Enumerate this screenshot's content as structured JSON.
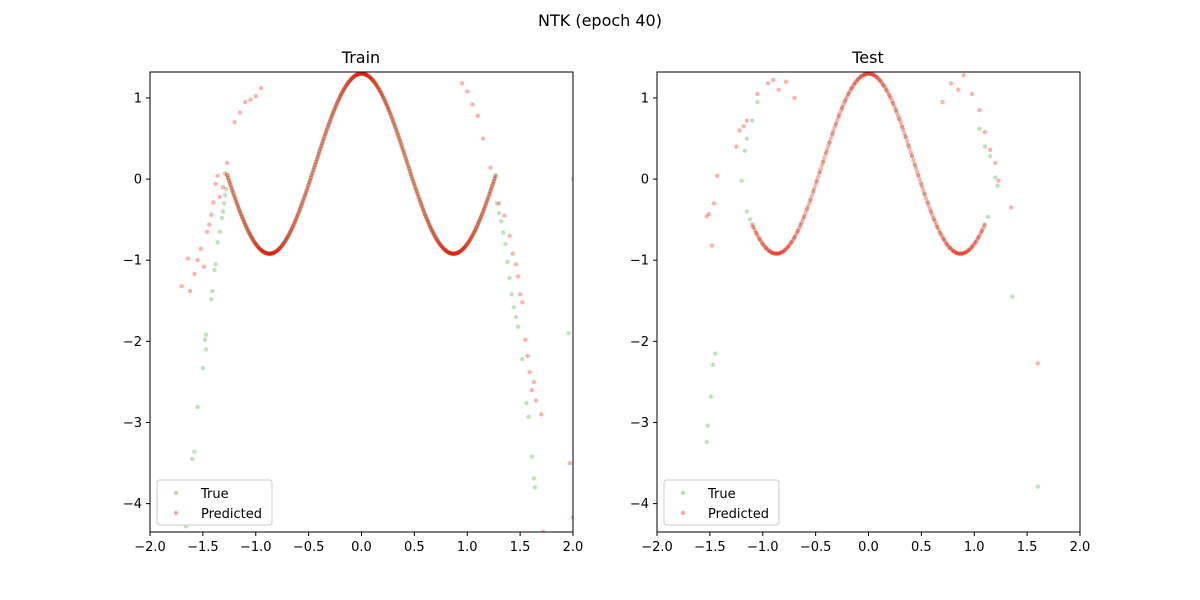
{
  "figure": {
    "suptitle": "NTK (epoch 40)"
  },
  "colors": {
    "true": "#2ca02c",
    "predicted": "#ff0000",
    "axes": "#000000"
  },
  "chart_data": [
    {
      "type": "scatter",
      "title": "Train",
      "xlabel": "",
      "ylabel": "",
      "xlim": [
        -2.0,
        2.0
      ],
      "ylim": [
        -4.35,
        1.32
      ],
      "xticks": [
        -2.0,
        -1.5,
        -1.0,
        -0.5,
        0.0,
        0.5,
        1.0,
        1.5,
        2.0
      ],
      "xtick_labels": [
        "−2.0",
        "−1.5",
        "−1.0",
        "−0.5",
        "0.0",
        "0.5",
        "1.0",
        "1.5",
        "2.0"
      ],
      "yticks": [
        -4,
        -3,
        -2,
        -1,
        0,
        1
      ],
      "ytick_labels": [
        "−4",
        "−3",
        "−2",
        "−1",
        "0",
        "1"
      ],
      "legend": {
        "placement": "lower-left",
        "entries": [
          "True",
          "Predicted"
        ]
      },
      "grid": false,
      "series": [
        {
          "name": "True",
          "color": "#2ca02c",
          "dense_curve": {
            "x_range": [
              -1.27,
              1.27
            ],
            "step": 0.01
          },
          "points": [
            [
              -1.66,
              -4.28
            ],
            [
              -1.6,
              -3.45
            ],
            [
              -1.58,
              -3.36
            ],
            [
              -1.55,
              -2.81
            ],
            [
              -1.5,
              -2.33
            ],
            [
              -1.48,
              -1.98
            ],
            [
              -1.47,
              -1.92
            ],
            [
              -1.47,
              -2.1
            ],
            [
              -1.42,
              -1.48
            ],
            [
              -1.41,
              -1.38
            ],
            [
              -1.39,
              -1.12
            ],
            [
              -1.38,
              -1.05
            ],
            [
              -1.36,
              -0.78
            ],
            [
              -1.34,
              -0.65
            ],
            [
              -1.32,
              -0.48
            ],
            [
              -1.31,
              -0.4
            ],
            [
              -1.3,
              -0.3
            ],
            [
              -1.29,
              -0.2
            ],
            [
              -1.28,
              -0.12
            ],
            [
              1.28,
              -0.3
            ],
            [
              1.3,
              -0.42
            ],
            [
              1.32,
              -0.52
            ],
            [
              1.34,
              -0.66
            ],
            [
              1.36,
              -0.8
            ],
            [
              1.38,
              -1.02
            ],
            [
              1.4,
              -1.22
            ],
            [
              1.42,
              -1.42
            ],
            [
              1.44,
              -1.58
            ],
            [
              1.46,
              -1.7
            ],
            [
              1.48,
              -1.82
            ],
            [
              1.52,
              -2.22
            ],
            [
              1.56,
              -2.76
            ],
            [
              1.58,
              -2.93
            ],
            [
              1.61,
              -3.42
            ],
            [
              1.63,
              -3.69
            ],
            [
              1.64,
              -3.8
            ],
            [
              1.96,
              -1.9
            ],
            [
              2.0,
              0.0
            ]
          ]
        },
        {
          "name": "Predicted",
          "color": "#ff0000",
          "dense_curve": {
            "x_range": [
              -1.27,
              1.27
            ],
            "step": 0.008
          },
          "points": [
            [
              -1.7,
              -1.32
            ],
            [
              -1.64,
              -0.98
            ],
            [
              -1.62,
              -1.38
            ],
            [
              -1.58,
              -1.17
            ],
            [
              -1.55,
              -1.0
            ],
            [
              -1.52,
              -0.86
            ],
            [
              -1.49,
              -1.08
            ],
            [
              -1.46,
              -0.65
            ],
            [
              -1.44,
              -0.56
            ],
            [
              -1.42,
              -0.44
            ],
            [
              -1.4,
              -0.29
            ],
            [
              -1.38,
              -0.06
            ],
            [
              -1.36,
              0.04
            ],
            [
              -1.34,
              -0.22
            ],
            [
              -1.31,
              -0.1
            ],
            [
              -1.29,
              0.07
            ],
            [
              -1.27,
              0.2
            ],
            [
              -1.2,
              0.7
            ],
            [
              -1.15,
              0.82
            ],
            [
              -1.1,
              0.95
            ],
            [
              -1.05,
              0.98
            ],
            [
              -1.0,
              1.02
            ],
            [
              -0.95,
              1.12
            ],
            [
              0.95,
              1.18
            ],
            [
              1.0,
              1.08
            ],
            [
              1.05,
              0.92
            ],
            [
              1.1,
              0.78
            ],
            [
              1.15,
              0.5
            ],
            [
              1.22,
              0.14
            ],
            [
              1.3,
              -0.3
            ],
            [
              1.35,
              -0.45
            ],
            [
              1.4,
              -0.7
            ],
            [
              1.43,
              -0.92
            ],
            [
              1.46,
              -1.05
            ],
            [
              1.48,
              -1.2
            ],
            [
              1.5,
              -1.42
            ],
            [
              1.52,
              -1.52
            ],
            [
              1.55,
              -1.98
            ],
            [
              1.57,
              -2.18
            ],
            [
              1.59,
              -2.38
            ],
            [
              1.61,
              -2.6
            ],
            [
              1.63,
              -2.5
            ],
            [
              1.65,
              -2.73
            ],
            [
              1.7,
              -2.9
            ],
            [
              1.72,
              -4.35
            ],
            [
              1.97,
              -3.5
            ],
            [
              2.0,
              -4.17
            ]
          ]
        }
      ]
    },
    {
      "type": "scatter",
      "title": "Test",
      "xlabel": "",
      "ylabel": "",
      "xlim": [
        -2.0,
        2.0
      ],
      "ylim": [
        -4.35,
        1.32
      ],
      "xticks": [
        -2.0,
        -1.5,
        -1.0,
        -0.5,
        0.0,
        0.5,
        1.0,
        1.5,
        2.0
      ],
      "xtick_labels": [
        "−2.0",
        "−1.5",
        "−1.0",
        "−0.5",
        "0.0",
        "0.5",
        "1.0",
        "1.5",
        "2.0"
      ],
      "yticks": [
        -4,
        -3,
        -2,
        -1,
        0,
        1
      ],
      "ytick_labels": [
        "−4",
        "−3",
        "−2",
        "−1",
        "0",
        "1"
      ],
      "legend": {
        "placement": "lower-left",
        "entries": [
          "True",
          "Predicted"
        ]
      },
      "grid": false,
      "series": [
        {
          "name": "True",
          "color": "#2ca02c",
          "dense_curve": {
            "x_range": [
              -1.15,
              1.15
            ],
            "step": 0.03
          },
          "points": [
            [
              -1.53,
              -3.24
            ],
            [
              -1.52,
              -3.04
            ],
            [
              -1.49,
              -2.68
            ],
            [
              -1.47,
              -2.29
            ],
            [
              -1.45,
              -2.15
            ],
            [
              -1.2,
              -0.02
            ],
            [
              -1.17,
              0.35
            ],
            [
              -1.15,
              0.5
            ],
            [
              -1.1,
              0.72
            ],
            [
              -1.05,
              0.95
            ],
            [
              1.05,
              0.62
            ],
            [
              1.1,
              0.4
            ],
            [
              1.15,
              0.28
            ],
            [
              1.2,
              0.02
            ],
            [
              1.22,
              -0.08
            ],
            [
              1.36,
              -1.45
            ],
            [
              1.6,
              -3.79
            ]
          ]
        },
        {
          "name": "Predicted",
          "color": "#ff0000",
          "dense_curve": {
            "x_range": [
              -1.1,
              1.1
            ],
            "step": 0.012
          },
          "points": [
            [
              -1.53,
              -0.46
            ],
            [
              -1.51,
              -0.43
            ],
            [
              -1.48,
              -0.82
            ],
            [
              -1.46,
              -0.3
            ],
            [
              -1.43,
              0.04
            ],
            [
              -1.25,
              0.4
            ],
            [
              -1.22,
              0.6
            ],
            [
              -1.18,
              0.65
            ],
            [
              -1.15,
              0.72
            ],
            [
              -1.05,
              1.05
            ],
            [
              -0.95,
              1.18
            ],
            [
              -0.9,
              1.22
            ],
            [
              -0.85,
              1.1
            ],
            [
              -0.78,
              1.2
            ],
            [
              -0.7,
              1.0
            ],
            [
              0.7,
              0.95
            ],
            [
              0.78,
              1.18
            ],
            [
              0.85,
              1.1
            ],
            [
              0.9,
              1.28
            ],
            [
              0.98,
              1.05
            ],
            [
              1.05,
              0.85
            ],
            [
              1.1,
              0.58
            ],
            [
              1.15,
              0.36
            ],
            [
              1.2,
              0.2
            ],
            [
              1.23,
              -0.02
            ],
            [
              1.35,
              -0.35
            ],
            [
              1.6,
              -2.27
            ]
          ]
        }
      ]
    }
  ]
}
